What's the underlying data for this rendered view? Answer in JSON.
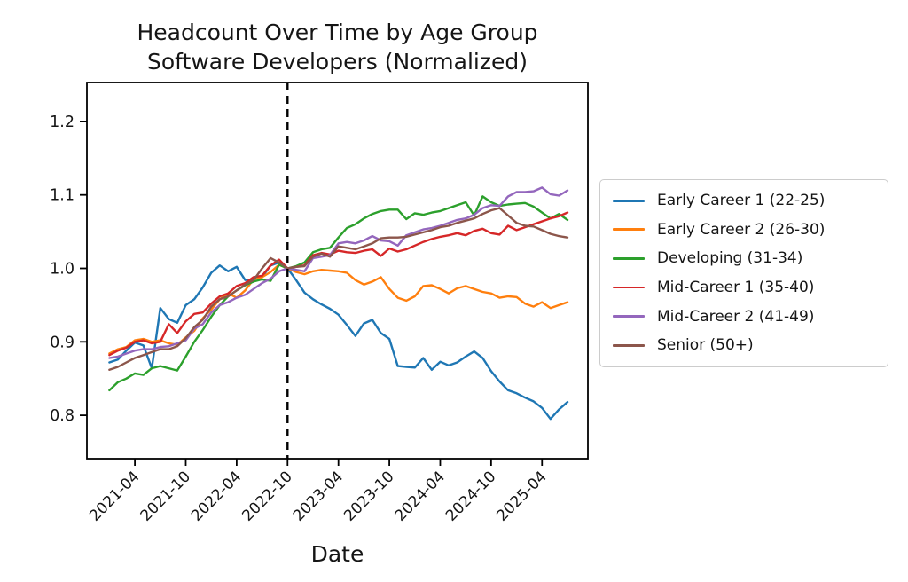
{
  "chart_data": {
    "type": "line",
    "title": "Headcount Over Time by Age Group",
    "subtitle": "Software Developers (Normalized)",
    "xlabel": "Date",
    "ylabel": "",
    "grid": false,
    "legend_position": "right-outside",
    "axis_color": "#000000",
    "event_line": {
      "x": "2022-10",
      "style": "dashed",
      "color": "#000000"
    },
    "y_ticks": [
      "0.8",
      "0.9",
      "1.0",
      "1.1",
      "1.2"
    ],
    "ylim": [
      0.741,
      1.253
    ],
    "x_tick_labels": [
      "2021-04",
      "2021-10",
      "2022-04",
      "2022-10",
      "2023-04",
      "2023-10",
      "2024-04",
      "2024-10",
      "2025-04"
    ],
    "x_months": [
      "2021-01",
      "2021-02",
      "2021-03",
      "2021-04",
      "2021-05",
      "2021-06",
      "2021-07",
      "2021-08",
      "2021-09",
      "2021-10",
      "2021-11",
      "2021-12",
      "2022-01",
      "2022-02",
      "2022-03",
      "2022-04",
      "2022-05",
      "2022-06",
      "2022-07",
      "2022-08",
      "2022-09",
      "2022-10",
      "2022-11",
      "2022-12",
      "2023-01",
      "2023-02",
      "2023-03",
      "2023-04",
      "2023-05",
      "2023-06",
      "2023-07",
      "2023-08",
      "2023-09",
      "2023-10",
      "2023-11",
      "2023-12",
      "2024-01",
      "2024-02",
      "2024-03",
      "2024-04",
      "2024-05",
      "2024-06",
      "2024-07",
      "2024-08",
      "2024-09",
      "2024-10",
      "2024-11",
      "2024-12",
      "2025-01",
      "2025-02",
      "2025-03",
      "2025-04",
      "2025-05",
      "2025-06",
      "2025-07"
    ],
    "series": [
      {
        "name": "Early Career 1 (22-25)",
        "color": "#1f77b4",
        "values": [
          0.872,
          0.876,
          0.888,
          0.899,
          0.895,
          0.864,
          0.946,
          0.931,
          0.926,
          0.95,
          0.958,
          0.974,
          0.994,
          1.004,
          0.996,
          1.002,
          0.984,
          0.985,
          0.988,
          1.004,
          1.008,
          1.0,
          0.984,
          0.967,
          0.958,
          0.951,
          0.945,
          0.937,
          0.923,
          0.908,
          0.925,
          0.93,
          0.912,
          0.904,
          0.867,
          0.866,
          0.865,
          0.878,
          0.862,
          0.873,
          0.868,
          0.872,
          0.88,
          0.887,
          0.878,
          0.86,
          0.846,
          0.834,
          0.83,
          0.824,
          0.819,
          0.81,
          0.795,
          0.808,
          0.818
        ]
      },
      {
        "name": "Early Career 2 (26-30)",
        "color": "#ff7f0e",
        "values": [
          0.884,
          0.89,
          0.893,
          0.902,
          0.904,
          0.9,
          0.902,
          0.898,
          0.896,
          0.906,
          0.915,
          0.932,
          0.944,
          0.958,
          0.966,
          0.96,
          0.97,
          0.985,
          0.988,
          0.995,
          1.005,
          1.0,
          0.995,
          0.992,
          0.996,
          0.998,
          0.997,
          0.996,
          0.994,
          0.984,
          0.978,
          0.982,
          0.988,
          0.972,
          0.96,
          0.956,
          0.962,
          0.976,
          0.977,
          0.972,
          0.966,
          0.973,
          0.976,
          0.972,
          0.968,
          0.966,
          0.96,
          0.962,
          0.961,
          0.952,
          0.948,
          0.954,
          0.946,
          0.95,
          0.954
        ]
      },
      {
        "name": "Developing (31-34)",
        "color": "#2ca02c",
        "values": [
          0.834,
          0.845,
          0.85,
          0.857,
          0.855,
          0.864,
          0.867,
          0.864,
          0.861,
          0.88,
          0.9,
          0.916,
          0.934,
          0.95,
          0.962,
          0.97,
          0.977,
          0.982,
          0.985,
          0.983,
          1.005,
          1.0,
          1.003,
          1.008,
          1.022,
          1.026,
          1.028,
          1.042,
          1.055,
          1.06,
          1.068,
          1.074,
          1.078,
          1.08,
          1.08,
          1.067,
          1.075,
          1.073,
          1.076,
          1.078,
          1.082,
          1.086,
          1.09,
          1.072,
          1.098,
          1.09,
          1.085,
          1.087,
          1.088,
          1.089,
          1.084,
          1.076,
          1.068,
          1.074,
          1.066
        ]
      },
      {
        "name": "Mid-Career 1 (35-40)",
        "color": "#d62728",
        "values": [
          0.882,
          0.888,
          0.892,
          0.9,
          0.902,
          0.898,
          0.9,
          0.924,
          0.912,
          0.928,
          0.938,
          0.94,
          0.952,
          0.962,
          0.966,
          0.976,
          0.98,
          0.988,
          0.99,
          1.004,
          1.012,
          1.0,
          1.002,
          1.004,
          1.018,
          1.021,
          1.019,
          1.024,
          1.022,
          1.021,
          1.024,
          1.026,
          1.017,
          1.027,
          1.023,
          1.026,
          1.031,
          1.036,
          1.04,
          1.043,
          1.045,
          1.048,
          1.045,
          1.051,
          1.054,
          1.048,
          1.046,
          1.058,
          1.052,
          1.056,
          1.06,
          1.064,
          1.068,
          1.071,
          1.076
        ]
      },
      {
        "name": "Mid-Career 2 (41-49)",
        "color": "#9467bd",
        "values": [
          0.878,
          0.88,
          0.884,
          0.888,
          0.89,
          0.89,
          0.893,
          0.894,
          0.898,
          0.902,
          0.918,
          0.924,
          0.94,
          0.95,
          0.954,
          0.96,
          0.964,
          0.972,
          0.98,
          0.986,
          0.996,
          1.0,
          0.998,
          0.996,
          1.014,
          1.016,
          1.018,
          1.034,
          1.036,
          1.034,
          1.038,
          1.044,
          1.038,
          1.037,
          1.031,
          1.045,
          1.049,
          1.053,
          1.055,
          1.058,
          1.062,
          1.066,
          1.068,
          1.073,
          1.082,
          1.086,
          1.085,
          1.098,
          1.104,
          1.104,
          1.105,
          1.11,
          1.101,
          1.099,
          1.106
        ]
      },
      {
        "name": "Senior (50+)",
        "color": "#8c564b",
        "values": [
          0.862,
          0.866,
          0.872,
          0.878,
          0.882,
          0.886,
          0.89,
          0.89,
          0.894,
          0.905,
          0.92,
          0.93,
          0.948,
          0.958,
          0.962,
          0.97,
          0.978,
          0.984,
          1.0,
          1.014,
          1.008,
          1.0,
          1.002,
          1.003,
          1.016,
          1.02,
          1.016,
          1.03,
          1.028,
          1.026,
          1.03,
          1.034,
          1.041,
          1.042,
          1.042,
          1.043,
          1.046,
          1.049,
          1.052,
          1.056,
          1.058,
          1.062,
          1.065,
          1.068,
          1.074,
          1.079,
          1.082,
          1.072,
          1.062,
          1.058,
          1.057,
          1.052,
          1.047,
          1.044,
          1.042
        ]
      }
    ]
  }
}
